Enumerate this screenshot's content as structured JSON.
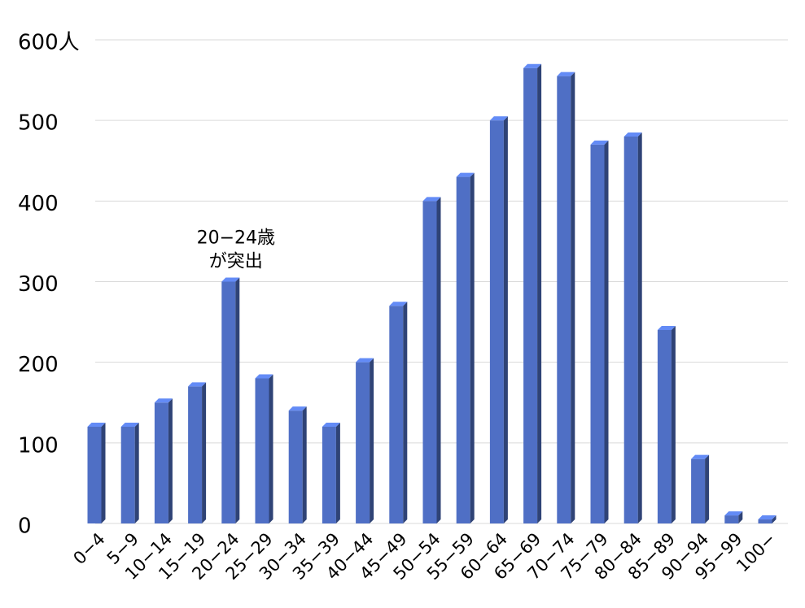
{
  "chart_data": {
    "type": "bar3d",
    "categories": [
      "0−4",
      "5−9",
      "10−14",
      "15−19",
      "20−24",
      "25−29",
      "30−34",
      "35−39",
      "40−44",
      "45−49",
      "50−54",
      "55−59",
      "60−64",
      "65−69",
      "70−74",
      "75−79",
      "80−84",
      "85−89",
      "90−94",
      "95−99",
      "100−"
    ],
    "values": [
      120,
      120,
      150,
      170,
      300,
      180,
      140,
      120,
      200,
      270,
      400,
      430,
      500,
      565,
      555,
      470,
      480,
      240,
      80,
      10,
      5
    ],
    "color": "#4f6fc5",
    "ylim": [
      0,
      600
    ],
    "yticks": [
      0,
      100,
      200,
      300,
      400,
      500,
      {
        "value": 600,
        "label": "600人"
      }
    ],
    "grid": true,
    "annotation": {
      "category_index": 4,
      "lines": [
        "20−24歳",
        "が突出"
      ]
    }
  }
}
